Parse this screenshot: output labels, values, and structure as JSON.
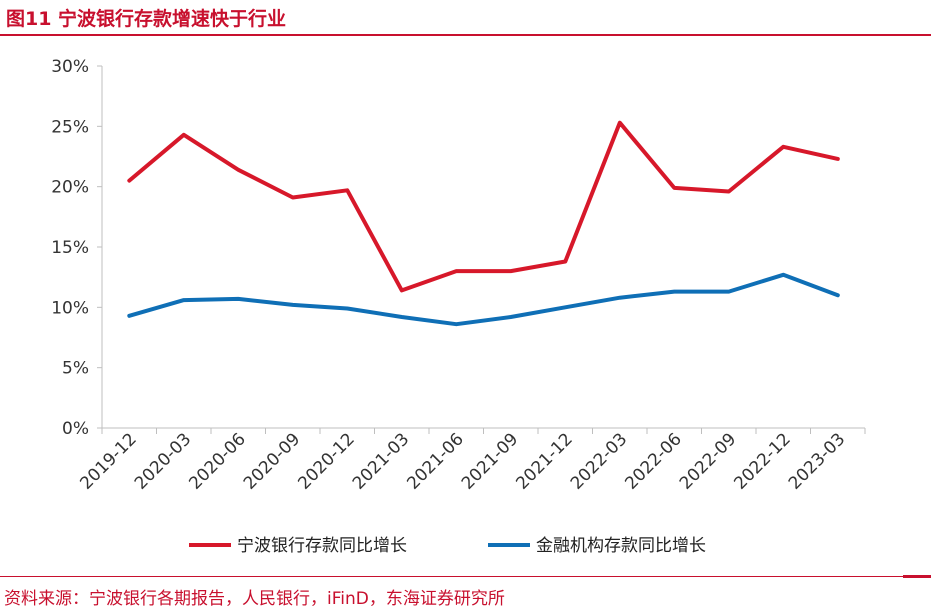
{
  "figure": {
    "title": "图11  宁波银行存款增速快于行业",
    "source": "资料来源：宁波银行各期报告，人民银行，iFinD，东海证券研究所"
  },
  "chart_data": {
    "type": "line",
    "categories": [
      "2019-12",
      "2020-03",
      "2020-06",
      "2020-09",
      "2020-12",
      "2021-03",
      "2021-06",
      "2021-09",
      "2021-12",
      "2022-03",
      "2022-06",
      "2022-09",
      "2022-12",
      "2023-03"
    ],
    "series": [
      {
        "name": "宁波银行存款同比增长",
        "color": "#d7182a",
        "values": [
          20.5,
          24.3,
          21.4,
          19.1,
          19.7,
          11.4,
          13.0,
          13.0,
          13.8,
          25.3,
          19.9,
          19.6,
          23.3,
          22.3
        ]
      },
      {
        "name": "金融机构存款同比增长",
        "color": "#0f6fb6",
        "values": [
          9.3,
          10.6,
          10.7,
          10.2,
          9.9,
          9.2,
          8.6,
          9.2,
          10.0,
          10.8,
          11.3,
          11.3,
          12.7,
          11.0
        ]
      }
    ],
    "ylim": [
      0,
      30
    ],
    "yticks": [
      0,
      5,
      10,
      15,
      20,
      25,
      30
    ],
    "ytick_labels": [
      "0%",
      "5%",
      "10%",
      "15%",
      "20%",
      "25%",
      "30%"
    ],
    "legend_position": "bottom",
    "grid": false
  }
}
